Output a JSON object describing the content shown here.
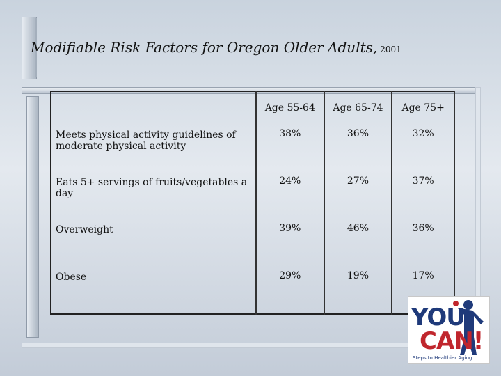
{
  "slide": {
    "title": "Modifiable Risk Factors for Oregon Older Adults,",
    "title_year": "2001"
  },
  "table": {
    "columns": [
      "",
      "Age 55-64",
      "Age 65-74",
      "Age 75+"
    ],
    "rows": [
      {
        "label": "Meets physical activity guidelines of moderate physical activity",
        "values": [
          "38%",
          "36%",
          "32%"
        ]
      },
      {
        "label": "Eats 5+ servings of fruits/vegetables a day",
        "values": [
          "24%",
          "27%",
          "37%"
        ]
      },
      {
        "label": "Overweight",
        "values": [
          "39%",
          "46%",
          "36%"
        ]
      },
      {
        "label": "Obese",
        "values": [
          "29%",
          "19%",
          "17%"
        ]
      }
    ]
  },
  "logo": {
    "line1": "YOU",
    "line2": "CAN!",
    "tagline": "Steps to Healthier Aging",
    "colors": {
      "blue": "#1f3a7a",
      "red": "#c0262d"
    }
  }
}
